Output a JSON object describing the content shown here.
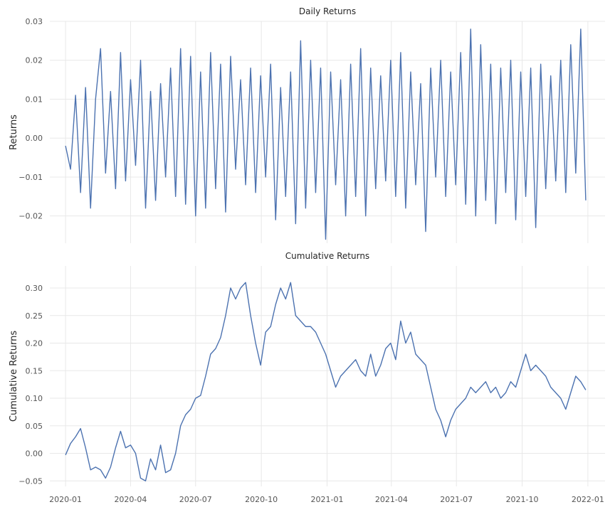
{
  "chart_data": [
    {
      "type": "line",
      "title": "Daily Returns",
      "ylabel": "Returns",
      "xlabel": "",
      "x_range": [
        "2020-01-01",
        "2021-12-31"
      ],
      "ylim": [
        -0.027,
        0.03
      ],
      "yticks": [
        -0.02,
        -0.01,
        0.0,
        0.01,
        0.02,
        0.03
      ],
      "ytick_labels": [
        "−0.02",
        "−0.01",
        "0.00",
        "0.01",
        "0.02",
        "0.03"
      ],
      "show_xtick_labels": false,
      "grid": true,
      "line_color": "#4c72b0",
      "series": [
        {
          "x": [
            "2020-01-01",
            "2020-01-08",
            "2020-01-15",
            "2020-01-22",
            "2020-01-29",
            "2020-02-05",
            "2020-02-12",
            "2020-02-19",
            "2020-02-26",
            "2020-03-04",
            "2020-03-11",
            "2020-03-18",
            "2020-03-25",
            "2020-04-01",
            "2020-04-08",
            "2020-04-15",
            "2020-04-22",
            "2020-04-29",
            "2020-05-06",
            "2020-05-13",
            "2020-05-20",
            "2020-05-27",
            "2020-06-03",
            "2020-06-10",
            "2020-06-17",
            "2020-06-24",
            "2020-07-01",
            "2020-07-08",
            "2020-07-15",
            "2020-07-22",
            "2020-07-29",
            "2020-08-05",
            "2020-08-12",
            "2020-08-19",
            "2020-08-26",
            "2020-09-02",
            "2020-09-09",
            "2020-09-16",
            "2020-09-23",
            "2020-09-30",
            "2020-10-07",
            "2020-10-14",
            "2020-10-21",
            "2020-10-28",
            "2020-11-04",
            "2020-11-11",
            "2020-11-18",
            "2020-11-25",
            "2020-12-02",
            "2020-12-09",
            "2020-12-16",
            "2020-12-23",
            "2020-12-30",
            "2021-01-06",
            "2021-01-13",
            "2021-01-20",
            "2021-01-27",
            "2021-02-03",
            "2021-02-10",
            "2021-02-17",
            "2021-02-24",
            "2021-03-03",
            "2021-03-10",
            "2021-03-17",
            "2021-03-24",
            "2021-03-31",
            "2021-04-07",
            "2021-04-14",
            "2021-04-21",
            "2021-04-28",
            "2021-05-05",
            "2021-05-12",
            "2021-05-19",
            "2021-05-26",
            "2021-06-02",
            "2021-06-09",
            "2021-06-16",
            "2021-06-23",
            "2021-06-30",
            "2021-07-07",
            "2021-07-14",
            "2021-07-21",
            "2021-07-28",
            "2021-08-04",
            "2021-08-11",
            "2021-08-18",
            "2021-08-25",
            "2021-09-01",
            "2021-09-08",
            "2021-09-15",
            "2021-09-22",
            "2021-09-29",
            "2021-10-06",
            "2021-10-13",
            "2021-10-20",
            "2021-10-27",
            "2021-11-03",
            "2021-11-10",
            "2021-11-17",
            "2021-11-24",
            "2021-12-01",
            "2021-12-08",
            "2021-12-15",
            "2021-12-22",
            "2021-12-29"
          ],
          "y": [
            -0.002,
            -0.008,
            0.011,
            -0.014,
            0.013,
            -0.018,
            0.01,
            0.023,
            -0.009,
            0.012,
            -0.013,
            0.022,
            -0.011,
            0.015,
            -0.007,
            0.02,
            -0.018,
            0.012,
            -0.016,
            0.014,
            -0.01,
            0.018,
            -0.015,
            0.023,
            -0.017,
            0.021,
            -0.02,
            0.017,
            -0.018,
            0.022,
            -0.013,
            0.019,
            -0.019,
            0.021,
            -0.008,
            0.015,
            -0.012,
            0.018,
            -0.014,
            0.016,
            -0.01,
            0.019,
            -0.021,
            0.013,
            -0.015,
            0.017,
            -0.022,
            0.025,
            -0.018,
            0.02,
            -0.014,
            0.018,
            -0.026,
            0.017,
            -0.012,
            0.015,
            -0.02,
            0.019,
            -0.015,
            0.023,
            -0.02,
            0.018,
            -0.013,
            0.016,
            -0.011,
            0.02,
            -0.015,
            0.022,
            -0.018,
            0.017,
            -0.012,
            0.014,
            -0.024,
            0.018,
            -0.01,
            0.02,
            -0.015,
            0.017,
            -0.012,
            0.022,
            -0.017,
            0.028,
            -0.02,
            0.024,
            -0.016,
            0.019,
            -0.022,
            0.018,
            -0.014,
            0.02,
            -0.021,
            0.017,
            -0.015,
            0.018,
            -0.023,
            0.019,
            -0.013,
            0.016,
            -0.011,
            0.02,
            -0.014,
            0.024,
            -0.009,
            0.028,
            -0.016
          ]
        }
      ]
    },
    {
      "type": "line",
      "title": "Cumulative Returns",
      "ylabel": "Cumulative Returns",
      "xlabel": "",
      "x_range": [
        "2020-01-01",
        "2021-12-31"
      ],
      "ylim": [
        -0.06,
        0.34
      ],
      "yticks": [
        -0.05,
        0.0,
        0.05,
        0.1,
        0.15,
        0.2,
        0.25,
        0.3
      ],
      "ytick_labels": [
        "−0.05",
        "0.00",
        "0.05",
        "0.10",
        "0.15",
        "0.20",
        "0.25",
        "0.30"
      ],
      "xticks": [
        "2020-01-01",
        "2020-04-01",
        "2020-07-01",
        "2020-10-01",
        "2021-01-01",
        "2021-04-01",
        "2021-07-01",
        "2021-10-01",
        "2022-01-01"
      ],
      "xtick_labels": [
        "2020-01",
        "2020-04",
        "2020-07",
        "2020-10",
        "2021-01",
        "2021-04",
        "2021-07",
        "2021-10",
        "2022-01"
      ],
      "grid": true,
      "line_color": "#4c72b0",
      "series": [
        {
          "x": [
            "2020-01-01",
            "2020-01-08",
            "2020-01-15",
            "2020-01-22",
            "2020-01-29",
            "2020-02-05",
            "2020-02-12",
            "2020-02-19",
            "2020-02-26",
            "2020-03-04",
            "2020-03-11",
            "2020-03-18",
            "2020-03-25",
            "2020-04-01",
            "2020-04-08",
            "2020-04-15",
            "2020-04-22",
            "2020-04-29",
            "2020-05-06",
            "2020-05-13",
            "2020-05-20",
            "2020-05-27",
            "2020-06-03",
            "2020-06-10",
            "2020-06-17",
            "2020-06-24",
            "2020-07-01",
            "2020-07-08",
            "2020-07-15",
            "2020-07-22",
            "2020-07-29",
            "2020-08-05",
            "2020-08-12",
            "2020-08-19",
            "2020-08-26",
            "2020-09-02",
            "2020-09-09",
            "2020-09-16",
            "2020-09-23",
            "2020-09-30",
            "2020-10-07",
            "2020-10-14",
            "2020-10-21",
            "2020-10-28",
            "2020-11-04",
            "2020-11-11",
            "2020-11-18",
            "2020-11-25",
            "2020-12-02",
            "2020-12-09",
            "2020-12-16",
            "2020-12-23",
            "2020-12-30",
            "2021-01-06",
            "2021-01-13",
            "2021-01-20",
            "2021-01-27",
            "2021-02-03",
            "2021-02-10",
            "2021-02-17",
            "2021-02-24",
            "2021-03-03",
            "2021-03-10",
            "2021-03-17",
            "2021-03-24",
            "2021-03-31",
            "2021-04-07",
            "2021-04-14",
            "2021-04-21",
            "2021-04-28",
            "2021-05-05",
            "2021-05-12",
            "2021-05-19",
            "2021-05-26",
            "2021-06-02",
            "2021-06-09",
            "2021-06-16",
            "2021-06-23",
            "2021-06-30",
            "2021-07-07",
            "2021-07-14",
            "2021-07-21",
            "2021-07-28",
            "2021-08-04",
            "2021-08-11",
            "2021-08-18",
            "2021-08-25",
            "2021-09-01",
            "2021-09-08",
            "2021-09-15",
            "2021-09-22",
            "2021-09-29",
            "2021-10-06",
            "2021-10-13",
            "2021-10-20",
            "2021-10-27",
            "2021-11-03",
            "2021-11-10",
            "2021-11-17",
            "2021-11-24",
            "2021-12-01",
            "2021-12-08",
            "2021-12-15",
            "2021-12-22",
            "2021-12-29"
          ],
          "y": [
            -0.003,
            0.018,
            0.03,
            0.045,
            0.01,
            -0.03,
            -0.025,
            -0.03,
            -0.045,
            -0.025,
            0.01,
            0.04,
            0.01,
            0.015,
            0.0,
            -0.045,
            -0.05,
            -0.01,
            -0.03,
            0.015,
            -0.035,
            -0.03,
            0.0,
            0.05,
            0.07,
            0.08,
            0.1,
            0.105,
            0.14,
            0.18,
            0.19,
            0.21,
            0.25,
            0.3,
            0.28,
            0.3,
            0.31,
            0.25,
            0.2,
            0.16,
            0.22,
            0.23,
            0.27,
            0.3,
            0.28,
            0.31,
            0.25,
            0.24,
            0.23,
            0.23,
            0.22,
            0.2,
            0.18,
            0.15,
            0.12,
            0.14,
            0.15,
            0.16,
            0.17,
            0.15,
            0.14,
            0.18,
            0.14,
            0.16,
            0.19,
            0.2,
            0.17,
            0.24,
            0.2,
            0.22,
            0.18,
            0.17,
            0.16,
            0.12,
            0.08,
            0.06,
            0.03,
            0.06,
            0.08,
            0.09,
            0.1,
            0.12,
            0.11,
            0.12,
            0.13,
            0.11,
            0.12,
            0.1,
            0.11,
            0.13,
            0.12,
            0.15,
            0.18,
            0.15,
            0.16,
            0.15,
            0.14,
            0.12,
            0.11,
            0.1,
            0.08,
            0.11,
            0.14,
            0.13,
            0.115
          ]
        }
      ]
    }
  ]
}
